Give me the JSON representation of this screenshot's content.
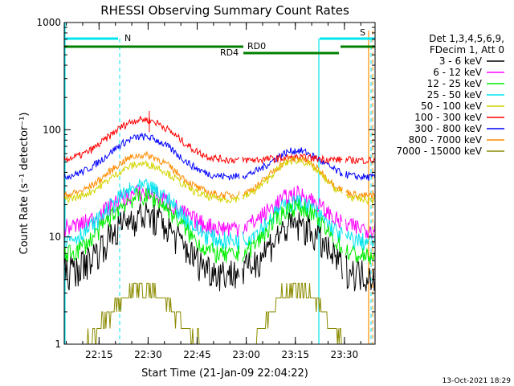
{
  "chart_data": {
    "type": "line",
    "title": "RHESSI Observing Summary Count Rates",
    "xlabel": "Start Time (21-Jan-09 22:04:22)",
    "ylabel": "Count Rate (s⁻¹ detector⁻¹)",
    "y_scale": "log",
    "ylim": [
      1,
      1000
    ],
    "xlim_minutes_after_start": [
      0,
      95
    ],
    "x_ticks": [
      "22:15",
      "22:30",
      "22:45",
      "23:00",
      "23:15",
      "23:30"
    ],
    "y_ticks": [
      "1",
      "10",
      "100",
      "1000"
    ],
    "legend_header": [
      "Det 1,3,4,5,6,9,",
      "FDecim 1, Att 0"
    ],
    "legend_position": "right",
    "timestamp": "13-Oct-2021 18:29",
    "flags": [
      {
        "label": "N",
        "color": "#00e5ee"
      },
      {
        "label": "S",
        "color": "#ff8c00"
      },
      {
        "label": "RD0",
        "color": "#008000"
      },
      {
        "label": "RD4",
        "color": "#008000"
      }
    ],
    "series": [
      {
        "name": "3 - 6 keV",
        "color": "#000000",
        "base": 4.5,
        "peak1": 16,
        "peak2": 13
      },
      {
        "name": "6 - 12 keV",
        "color": "#ff00ff",
        "base": 12,
        "peak1": 26,
        "peak2": 25
      },
      {
        "name": "12 - 25 keV",
        "color": "#00ee00",
        "base": 6.5,
        "peak1": 24,
        "peak2": 19
      },
      {
        "name": "25 - 50 keV",
        "color": "#00e5ee",
        "base": 9,
        "peak1": 29,
        "peak2": 21
      },
      {
        "name": "50 - 100 keV",
        "color": "#d4d400",
        "base": 22,
        "peak1": 48,
        "peak2": 52
      },
      {
        "name": "100 - 300 keV",
        "color": "#ff0000",
        "base": 52,
        "peak1": 125,
        "peak2": 55
      },
      {
        "name": "300 - 800 keV",
        "color": "#0000ff",
        "base": 36,
        "peak1": 86,
        "peak2": 64
      },
      {
        "name": "800 - 7000 keV",
        "color": "#ff8c00",
        "base": 24,
        "peak1": 58,
        "peak2": 54
      },
      {
        "name": "7000 - 15000 keV",
        "color": "#8b8b00",
        "base": 1.2,
        "peak1": 3.7,
        "peak2": 3.8
      }
    ]
  }
}
